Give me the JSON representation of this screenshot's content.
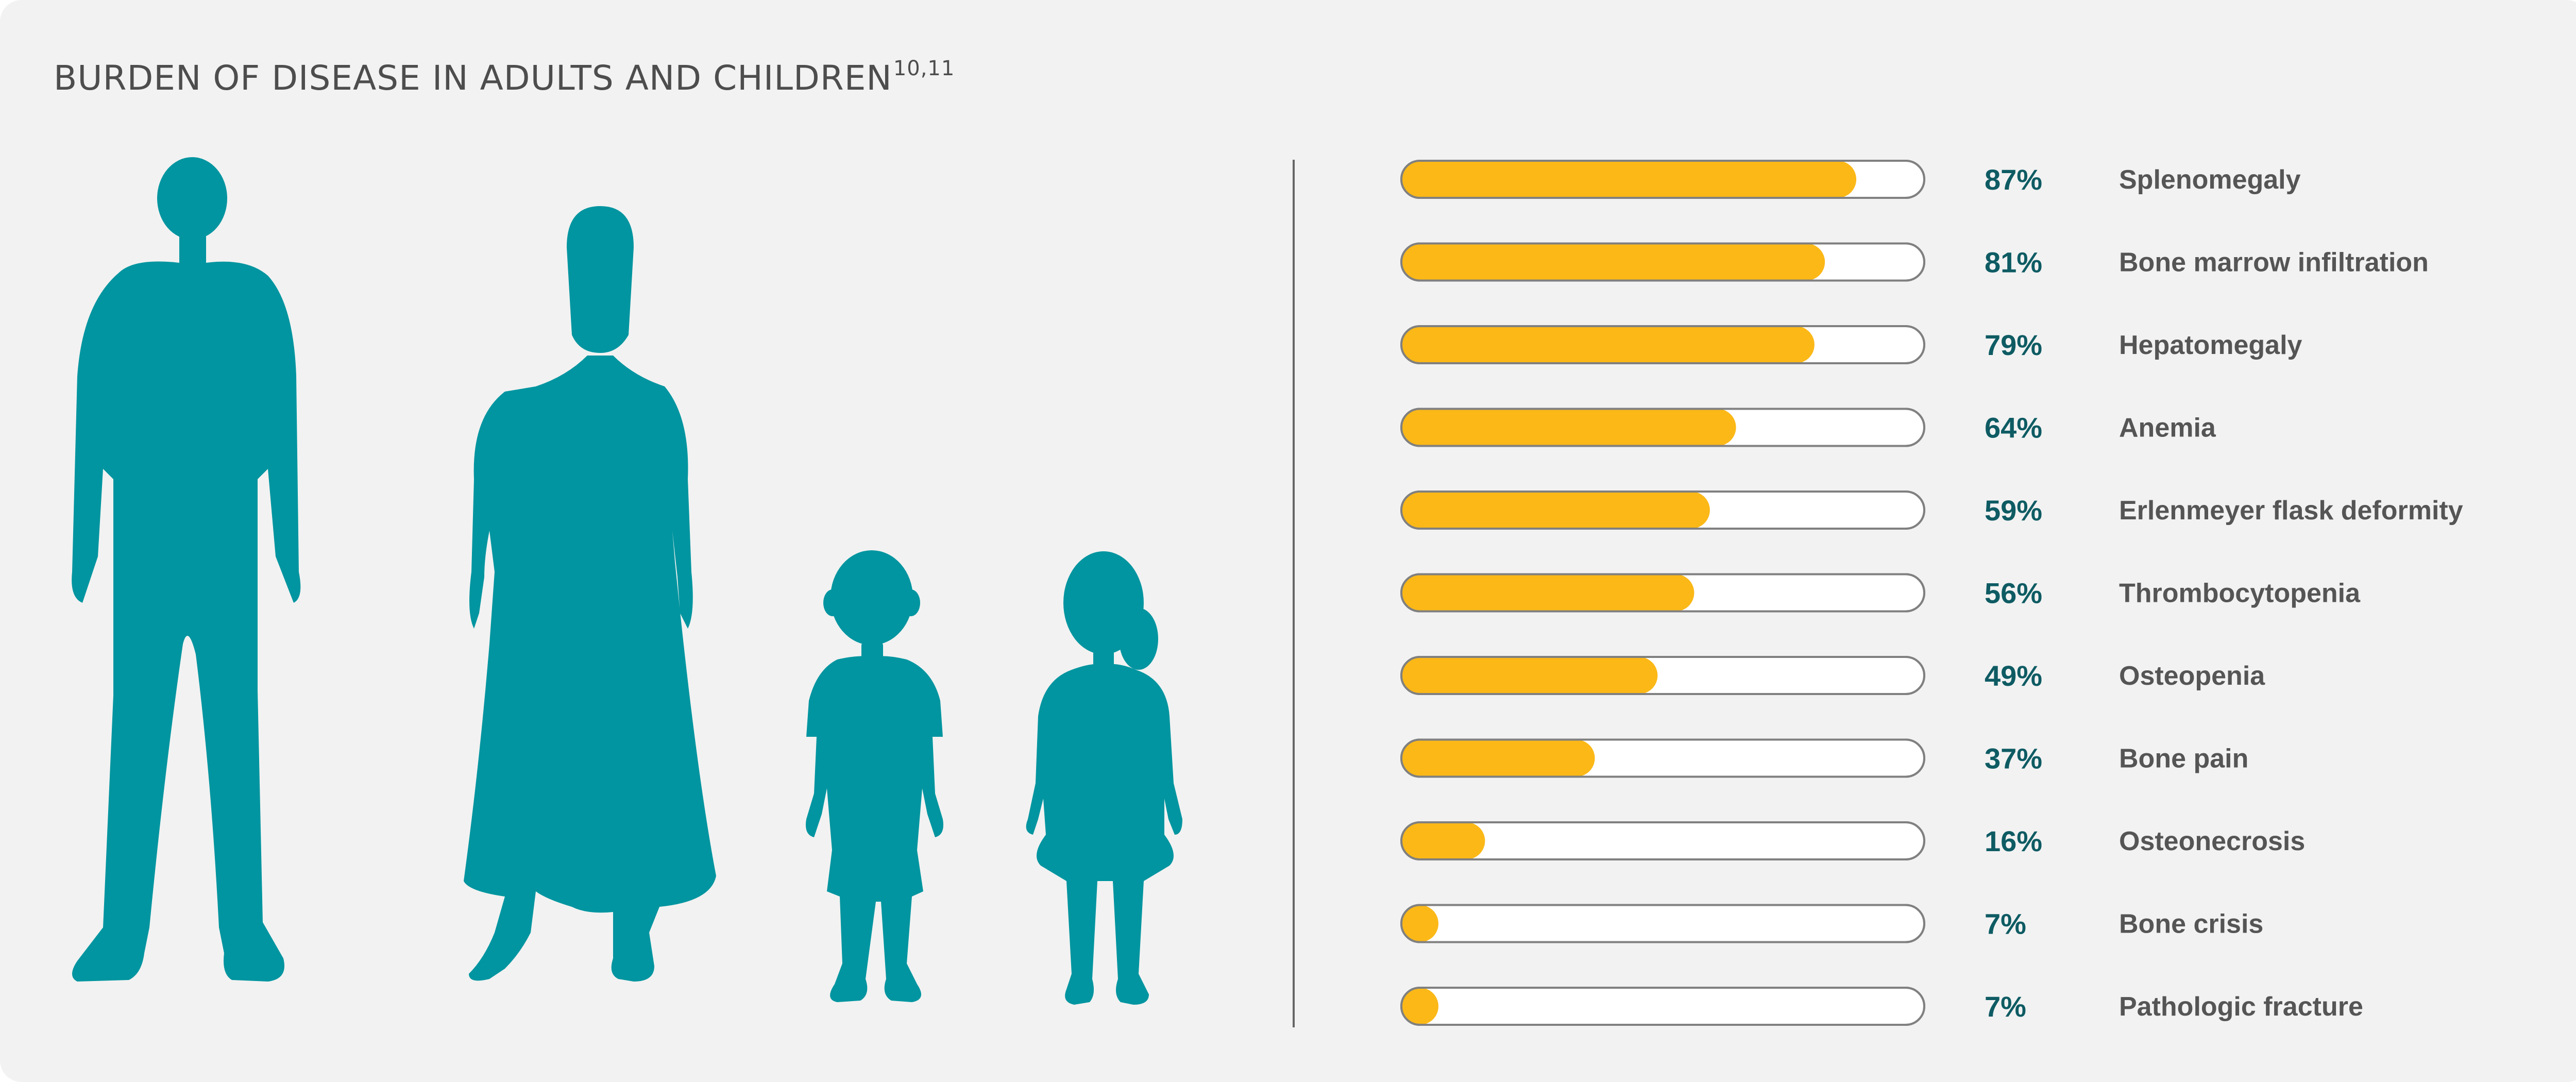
{
  "title": {
    "text": "BURDEN OF DISEASE IN ADULTS AND CHILDREN",
    "superscript": "10,11"
  },
  "figures": {
    "icons": [
      "adult-man-silhouette-icon",
      "adult-woman-silhouette-icon",
      "boy-silhouette-icon",
      "girl-silhouette-icon"
    ],
    "color": "#0095a0"
  },
  "colors": {
    "bar_fill": "#fbb817",
    "track": "#ffffff",
    "track_border": "#808080",
    "percent_text": "#0e5b63",
    "label_text": "#555555",
    "background": "#f2f2f2"
  },
  "chart_data": {
    "type": "bar",
    "orientation": "horizontal",
    "xlim": [
      0,
      100
    ],
    "unit": "%",
    "categories": [
      "Splenomegaly",
      "Bone marrow infiltration",
      "Hepatomegaly",
      "Anemia",
      "Erlenmeyer flask deformity",
      "Thrombocytopenia",
      "Osteopenia",
      "Bone pain",
      "Osteonecrosis",
      "Bone crisis",
      "Pathologic fracture"
    ],
    "values": [
      87,
      81,
      79,
      64,
      59,
      56,
      49,
      37,
      16,
      7,
      7
    ],
    "value_labels": [
      "87%",
      "81%",
      "79%",
      "64%",
      "59%",
      "56%",
      "49%",
      "37%",
      "16%",
      "7%",
      "7%"
    ]
  }
}
